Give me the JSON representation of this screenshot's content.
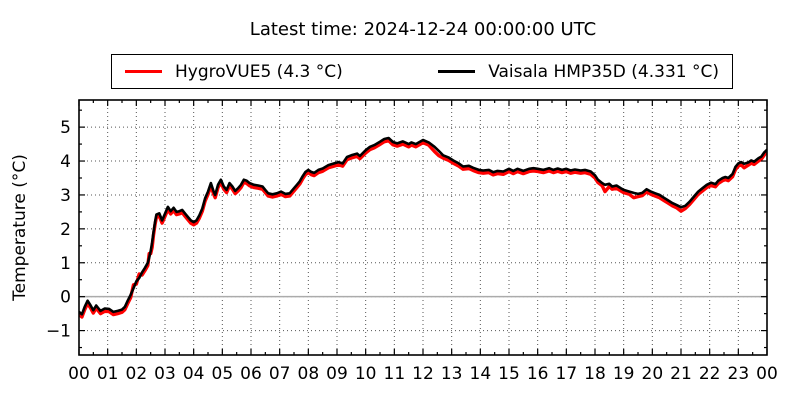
{
  "chart_data": {
    "type": "line",
    "title": "Latest time: 2024-12-24 00:00:00 UTC",
    "ylabel": "Temperature (°C)",
    "xlabel": "",
    "xlim": [
      0,
      24
    ],
    "ylim": [
      -1.72,
      5.8
    ],
    "xtick_values": [
      0,
      1,
      2,
      3,
      4,
      5,
      6,
      7,
      8,
      9,
      10,
      11,
      12,
      13,
      14,
      15,
      16,
      17,
      18,
      19,
      20,
      21,
      22,
      23,
      24
    ],
    "xtick_labels": [
      "00",
      "01",
      "02",
      "03",
      "04",
      "05",
      "06",
      "07",
      "08",
      "09",
      "10",
      "11",
      "12",
      "13",
      "14",
      "15",
      "16",
      "17",
      "18",
      "19",
      "20",
      "21",
      "22",
      "23",
      "00"
    ],
    "ytick_values": [
      -1,
      0,
      1,
      2,
      3,
      4,
      5
    ],
    "ytick_labels": [
      "−1",
      "0",
      "1",
      "2",
      "3",
      "4",
      "5"
    ],
    "minor_tick_step": 0.5,
    "grid": {
      "style": "dotted",
      "on": "major-both-axes",
      "color": "#555555"
    },
    "zero_line": {
      "value": 0,
      "style": "solid",
      "color": "#ababab"
    },
    "legend": {
      "position": "top-center-outside-axes",
      "columns": 2
    },
    "axis_color": "#000000",
    "background_color": "#ffffff",
    "hours": [
      0,
      0.1,
      0.2,
      0.3,
      0.4,
      0.5,
      0.6,
      0.75,
      0.9,
      1.05,
      1.2,
      1.35,
      1.5,
      1.6,
      1.7,
      1.8,
      1.9,
      2,
      2.1,
      2.2,
      2.3,
      2.4,
      2.45,
      2.5,
      2.55,
      2.6,
      2.65,
      2.7,
      2.8,
      2.9,
      3,
      3.1,
      3.2,
      3.3,
      3.4,
      3.5,
      3.6,
      3.7,
      3.8,
      3.9,
      4,
      4.1,
      4.2,
      4.3,
      4.4,
      4.5,
      4.6,
      4.7,
      4.75,
      4.85,
      4.95,
      5.05,
      5.15,
      5.25,
      5.35,
      5.45,
      5.55,
      5.65,
      5.75,
      5.85,
      5.95,
      6.1,
      6.25,
      6.4,
      6.5,
      6.6,
      6.75,
      6.9,
      7.05,
      7.2,
      7.35,
      7.5,
      7.6,
      7.7,
      7.8,
      7.9,
      8,
      8.1,
      8.2,
      8.35,
      8.5,
      8.7,
      8.9,
      9.05,
      9.2,
      9.35,
      9.5,
      9.7,
      9.8,
      10,
      10.15,
      10.3,
      10.5,
      10.65,
      10.8,
      10.95,
      11.1,
      11.3,
      11.5,
      11.6,
      11.75,
      12,
      12.2,
      12.4,
      12.55,
      12.7,
      12.9,
      13.05,
      13.25,
      13.4,
      13.6,
      13.75,
      13.95,
      14.1,
      14.3,
      14.45,
      14.6,
      14.8,
      15,
      15.15,
      15.3,
      15.5,
      15.7,
      15.85,
      16,
      16.2,
      16.4,
      16.55,
      16.7,
      16.85,
      17,
      17.15,
      17.3,
      17.5,
      17.65,
      17.85,
      18,
      18.1,
      18.25,
      18.35,
      18.5,
      18.6,
      18.75,
      18.9,
      19,
      19.2,
      19.35,
      19.5,
      19.65,
      19.8,
      19.95,
      20.1,
      20.25,
      20.4,
      20.55,
      20.7,
      20.85,
      21,
      21.15,
      21.3,
      21.45,
      21.6,
      21.75,
      21.9,
      22.05,
      22.2,
      22.3,
      22.45,
      22.55,
      22.65,
      22.8,
      22.9,
      23,
      23.1,
      23.2,
      23.35,
      23.45,
      23.55,
      23.7,
      23.8,
      23.9,
      24
    ],
    "series": [
      {
        "name": "HygroVUE5 (4.3 °C)",
        "color": "#ff0000",
        "line_width": 3.4,
        "latest_value_c": 4.3,
        "values": [
          -0.53,
          -0.6,
          -0.38,
          -0.2,
          -0.33,
          -0.48,
          -0.34,
          -0.5,
          -0.43,
          -0.44,
          -0.53,
          -0.5,
          -0.46,
          -0.38,
          -0.2,
          -0.03,
          0.35,
          0.37,
          0.67,
          0.64,
          0.77,
          0.92,
          1.27,
          1.27,
          1.45,
          1.82,
          2.12,
          2.34,
          2.38,
          2.17,
          2.37,
          2.57,
          2.44,
          2.54,
          2.42,
          2.44,
          2.48,
          2.37,
          2.27,
          2.17,
          2.12,
          2.17,
          2.32,
          2.52,
          2.82,
          3.02,
          3.27,
          3.02,
          2.92,
          3.22,
          3.37,
          3.17,
          3.07,
          3.27,
          3.17,
          3.04,
          3.12,
          3.22,
          3.37,
          3.34,
          3.27,
          3.22,
          3.2,
          3.17,
          3.07,
          2.97,
          2.94,
          2.97,
          3.02,
          2.95,
          2.97,
          3.12,
          3.22,
          3.32,
          3.47,
          3.6,
          3.66,
          3.6,
          3.57,
          3.66,
          3.7,
          3.8,
          3.85,
          3.89,
          3.85,
          4.04,
          4.09,
          4.14,
          4.07,
          4.24,
          4.34,
          4.39,
          4.49,
          4.57,
          4.6,
          4.48,
          4.44,
          4.5,
          4.42,
          4.47,
          4.42,
          4.54,
          4.47,
          4.28,
          4.16,
          4.09,
          4.02,
          3.94,
          3.85,
          3.76,
          3.78,
          3.72,
          3.66,
          3.64,
          3.66,
          3.59,
          3.63,
          3.61,
          3.69,
          3.63,
          3.69,
          3.63,
          3.69,
          3.71,
          3.69,
          3.66,
          3.71,
          3.66,
          3.7,
          3.66,
          3.69,
          3.64,
          3.67,
          3.64,
          3.66,
          3.61,
          3.5,
          3.37,
          3.27,
          3.1,
          3.25,
          3.17,
          3.2,
          3.12,
          3.07,
          3.02,
          2.92,
          2.95,
          2.98,
          3.09,
          3.02,
          2.97,
          2.92,
          2.84,
          2.76,
          2.68,
          2.62,
          2.52,
          2.6,
          2.72,
          2.87,
          3.02,
          3.12,
          3.22,
          3.28,
          3.24,
          3.34,
          3.42,
          3.45,
          3.42,
          3.54,
          3.75,
          3.85,
          3.89,
          3.8,
          3.88,
          3.94,
          3.9,
          4,
          4.05,
          4.17,
          4.3
        ]
      },
      {
        "name": "Vaisala HMP35D (4.331 °C)",
        "color": "#000000",
        "line_width": 2.6,
        "latest_value_c": 4.331,
        "values": [
          -0.45,
          -0.52,
          -0.3,
          -0.12,
          -0.25,
          -0.4,
          -0.26,
          -0.42,
          -0.35,
          -0.36,
          -0.45,
          -0.42,
          -0.38,
          -0.3,
          -0.12,
          0.05,
          0.25,
          0.45,
          0.55,
          0.72,
          0.85,
          1,
          1.15,
          1.35,
          1.6,
          1.9,
          2.2,
          2.42,
          2.46,
          2.25,
          2.45,
          2.65,
          2.52,
          2.62,
          2.5,
          2.52,
          2.56,
          2.45,
          2.35,
          2.25,
          2.2,
          2.25,
          2.4,
          2.6,
          2.9,
          3.1,
          3.35,
          3.1,
          3,
          3.3,
          3.45,
          3.25,
          3.15,
          3.35,
          3.25,
          3.12,
          3.2,
          3.3,
          3.45,
          3.42,
          3.35,
          3.3,
          3.28,
          3.25,
          3.15,
          3.05,
          3.02,
          3.05,
          3.1,
          3.03,
          3.05,
          3.2,
          3.3,
          3.4,
          3.55,
          3.68,
          3.74,
          3.68,
          3.65,
          3.74,
          3.78,
          3.88,
          3.93,
          3.97,
          3.93,
          4.12,
          4.17,
          4.22,
          4.15,
          4.32,
          4.42,
          4.47,
          4.57,
          4.65,
          4.68,
          4.56,
          4.52,
          4.58,
          4.5,
          4.55,
          4.5,
          4.62,
          4.55,
          4.42,
          4.3,
          4.17,
          4.1,
          4.02,
          3.93,
          3.84,
          3.86,
          3.8,
          3.74,
          3.72,
          3.74,
          3.67,
          3.71,
          3.69,
          3.77,
          3.71,
          3.77,
          3.71,
          3.77,
          3.79,
          3.77,
          3.74,
          3.79,
          3.74,
          3.78,
          3.74,
          3.77,
          3.72,
          3.75,
          3.72,
          3.74,
          3.69,
          3.58,
          3.45,
          3.35,
          3.3,
          3.33,
          3.25,
          3.28,
          3.2,
          3.15,
          3.1,
          3.06,
          3.03,
          3.06,
          3.17,
          3.1,
          3.05,
          3,
          2.92,
          2.84,
          2.76,
          2.7,
          2.64,
          2.68,
          2.8,
          2.95,
          3.1,
          3.2,
          3.3,
          3.36,
          3.32,
          3.42,
          3.5,
          3.53,
          3.5,
          3.62,
          3.83,
          3.93,
          3.97,
          3.92,
          3.96,
          4.02,
          3.98,
          4.08,
          4.13,
          4.25,
          4.331
        ]
      }
    ]
  }
}
